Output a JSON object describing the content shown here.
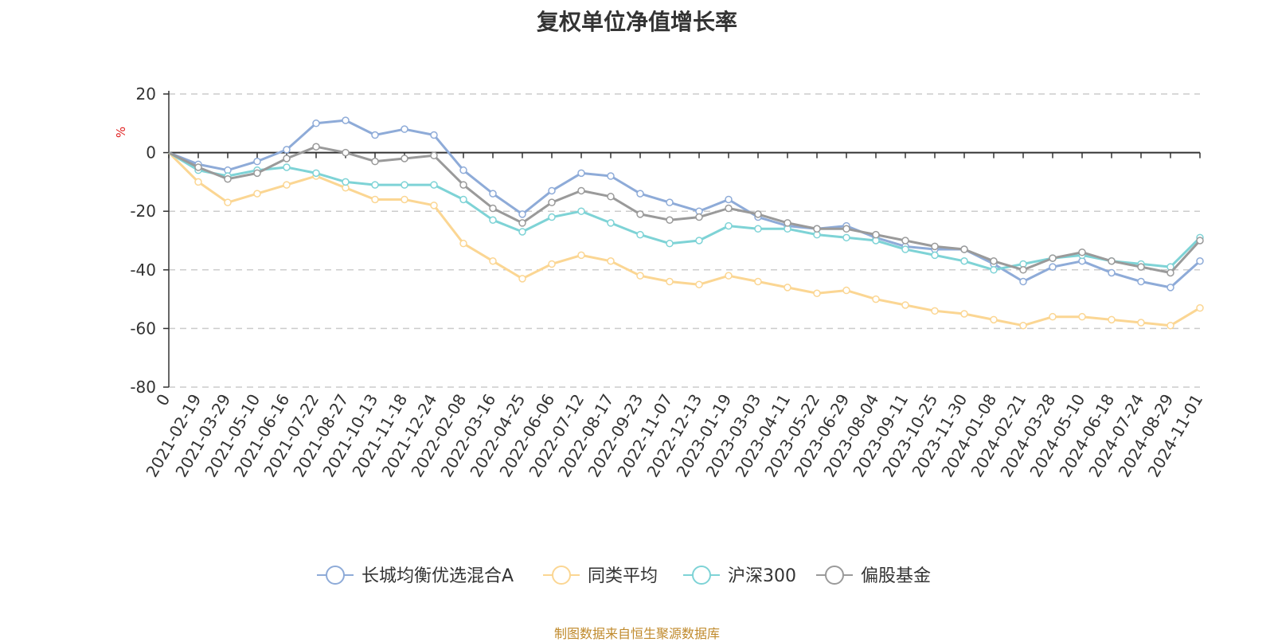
{
  "chart_data": {
    "type": "line",
    "title": "复权单位净值增长率",
    "ylabel": "%",
    "xlabel": "",
    "ylim": [
      -80,
      20
    ],
    "yticks": [
      20,
      0,
      -20,
      -40,
      -60,
      -80
    ],
    "x_origin_label": "0",
    "x": [
      "2021-02-19",
      "2021-03-29",
      "2021-05-10",
      "2021-06-16",
      "2021-07-22",
      "2021-08-27",
      "2021-10-13",
      "2021-11-18",
      "2021-12-24",
      "2022-02-08",
      "2022-03-16",
      "2022-04-25",
      "2022-06-06",
      "2022-07-12",
      "2022-08-17",
      "2022-09-23",
      "2022-11-07",
      "2022-12-13",
      "2023-01-19",
      "2023-03-03",
      "2023-04-11",
      "2023-05-22",
      "2023-06-29",
      "2023-08-04",
      "2023-09-11",
      "2023-10-25",
      "2023-11-30",
      "2024-01-08",
      "2024-02-21",
      "2024-03-28",
      "2024-05-10",
      "2024-06-18",
      "2024-07-24",
      "2024-08-29",
      "2024-11-01"
    ],
    "legend_position": "bottom",
    "grid": true,
    "series": [
      {
        "name": "长城均衡优选混合A",
        "color": "#8eabd8",
        "key": "fund",
        "values": [
          -4,
          -6,
          -3,
          1,
          10,
          11,
          6,
          8,
          6,
          -6,
          -14,
          -21,
          -13,
          -7,
          -8,
          -14,
          -17,
          -20,
          -16,
          -22,
          -25,
          -26,
          -25,
          -29,
          -32,
          -33,
          -33,
          -38,
          -44,
          -39,
          -37,
          -41,
          -44,
          -46,
          -37
        ]
      },
      {
        "name": "同类平均",
        "color": "#fbd693",
        "key": "peer",
        "values": [
          -10,
          -17,
          -14,
          -11,
          -8,
          -12,
          -16,
          -16,
          -18,
          -31,
          -37,
          -43,
          -38,
          -35,
          -37,
          -42,
          -44,
          -45,
          -42,
          -44,
          -46,
          -48,
          -47,
          -50,
          -52,
          -54,
          -55,
          -57,
          -59,
          -56,
          -56,
          -57,
          -58,
          -59,
          -53
        ]
      },
      {
        "name": "沪深300",
        "color": "#7ed3d6",
        "key": "hs300",
        "values": [
          -6,
          -8,
          -6,
          -5,
          -7,
          -10,
          -11,
          -11,
          -11,
          -16,
          -23,
          -27,
          -22,
          -20,
          -24,
          -28,
          -31,
          -30,
          -25,
          -26,
          -26,
          -28,
          -29,
          -30,
          -33,
          -35,
          -37,
          -40,
          -38,
          -36,
          -35,
          -37,
          -38,
          -39,
          -29
        ]
      },
      {
        "name": "偏股基金",
        "color": "#9a9a9a",
        "key": "equity",
        "values": [
          -5,
          -9,
          -7,
          -2,
          2,
          0,
          -3,
          -2,
          -1,
          -11,
          -19,
          -24,
          -17,
          -13,
          -15,
          -21,
          -23,
          -22,
          -19,
          -21,
          -24,
          -26,
          -26,
          -28,
          -30,
          -32,
          -33,
          -37,
          -40,
          -36,
          -34,
          -37,
          -39,
          -41,
          -30
        ]
      }
    ]
  },
  "footer": {
    "source": "制图数据来自恒生聚源数据库"
  }
}
